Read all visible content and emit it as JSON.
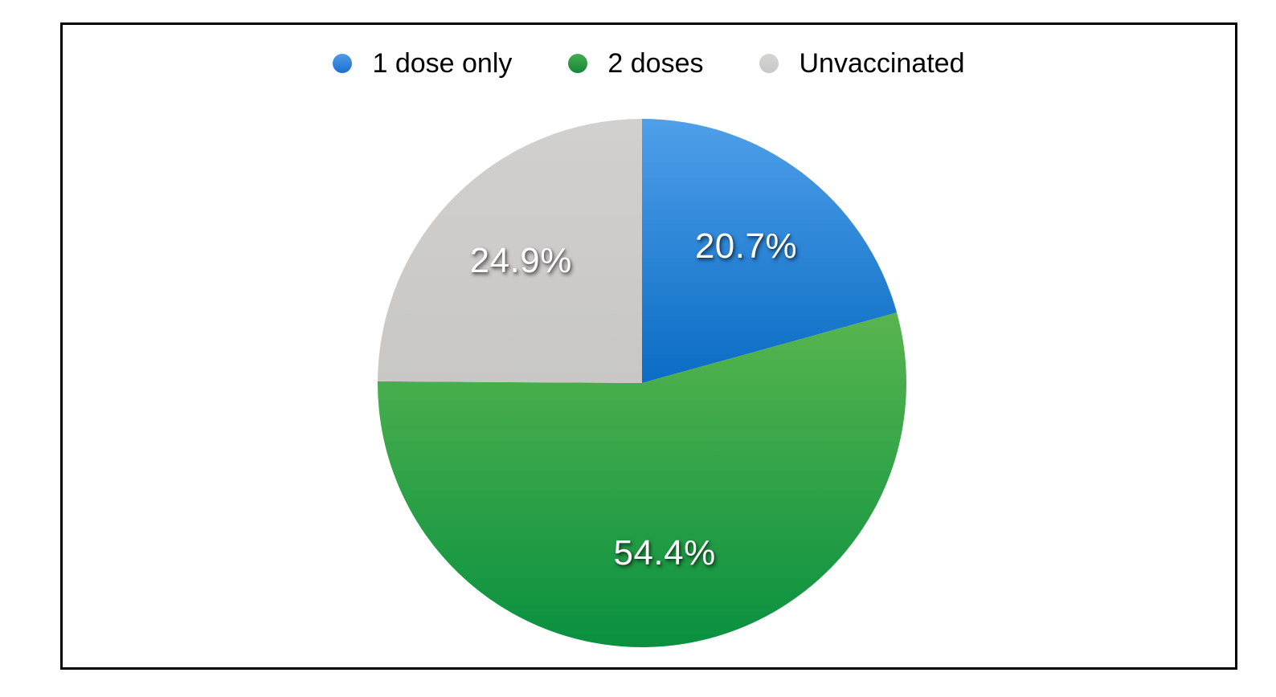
{
  "legend": {
    "items": [
      {
        "label": "1 dose only",
        "dot_color_top": "#4f9ce8",
        "dot_color_bottom": "#1a6fd0"
      },
      {
        "label": "2 doses",
        "dot_color_top": "#44ae4e",
        "dot_color_bottom": "#178439"
      },
      {
        "label": "Unvaccinated",
        "dot_color_top": "#d4d4d2",
        "dot_color_bottom": "#c8c8c6"
      }
    ]
  },
  "chart_data": {
    "type": "pie",
    "categories": [
      "1 dose only",
      "2 doses",
      "Unvaccinated"
    ],
    "values": [
      20.7,
      54.4,
      24.9
    ],
    "labels": [
      "20.7%",
      "54.4%",
      "24.9%"
    ],
    "start_angle_deg": 0,
    "direction": "clockwise",
    "legend_position": "top",
    "label_radius_fraction": 0.65,
    "label_color": "#ffffff",
    "slice_colors": [
      {
        "top": "#4f9fe9",
        "bottom": "#0a6cc4"
      },
      {
        "top": "#58b54f",
        "bottom": "#099040"
      },
      {
        "top": "#d1d0ce",
        "bottom": "#c8c7c5"
      }
    ],
    "frame_border_color": "#000000"
  }
}
